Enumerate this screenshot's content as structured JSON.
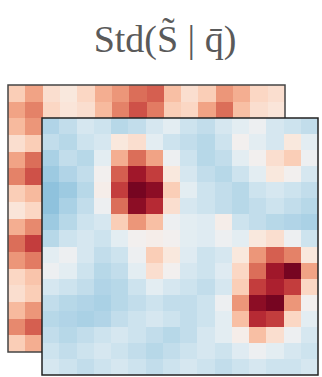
{
  "chart_data": [
    {
      "type": "heatmap",
      "title": "Std(S̃ | q̄)",
      "zlim": [
        0,
        1
      ],
      "cells": [
        [
          0.62,
          0.7,
          0.58,
          0.55,
          0.6,
          0.68,
          0.72,
          0.78,
          0.8,
          0.65,
          0.58,
          0.62,
          0.72,
          0.68,
          0.6,
          0.58
        ],
        [
          0.7,
          0.75,
          0.6,
          0.56,
          0.58,
          0.66,
          0.75,
          0.82,
          0.76,
          0.62,
          0.6,
          0.7,
          0.78,
          0.65,
          0.58,
          0.56
        ],
        [
          0.66,
          0.72,
          0.6,
          0.62,
          0.6,
          0.64,
          0.7,
          0.66,
          0.62,
          0.6,
          0.62,
          0.66,
          0.64,
          0.6,
          0.62,
          0.6
        ],
        [
          0.58,
          0.62,
          0.6,
          0.6,
          0.62,
          0.66,
          0.68,
          0.64,
          0.6,
          0.6,
          0.62,
          0.64,
          0.62,
          0.6,
          0.6,
          0.6
        ],
        [
          0.7,
          0.78,
          0.64,
          0.6,
          0.62,
          0.64,
          0.66,
          0.62,
          0.6,
          0.62,
          0.64,
          0.62,
          0.6,
          0.62,
          0.6,
          0.6
        ],
        [
          0.75,
          0.82,
          0.66,
          0.62,
          0.6,
          0.62,
          0.64,
          0.62,
          0.6,
          0.6,
          0.62,
          0.6,
          0.6,
          0.6,
          0.62,
          0.6
        ],
        [
          0.62,
          0.66,
          0.6,
          0.6,
          0.62,
          0.6,
          0.62,
          0.6,
          0.6,
          0.62,
          0.6,
          0.6,
          0.62,
          0.6,
          0.6,
          0.6
        ],
        [
          0.56,
          0.6,
          0.6,
          0.62,
          0.6,
          0.6,
          0.6,
          0.62,
          0.6,
          0.6,
          0.6,
          0.62,
          0.6,
          0.6,
          0.6,
          0.62
        ],
        [
          0.68,
          0.74,
          0.62,
          0.6,
          0.6,
          0.62,
          0.6,
          0.6,
          0.62,
          0.6,
          0.6,
          0.6,
          0.6,
          0.62,
          0.6,
          0.6
        ],
        [
          0.78,
          0.85,
          0.64,
          0.6,
          0.62,
          0.6,
          0.6,
          0.6,
          0.6,
          0.62,
          0.6,
          0.6,
          0.6,
          0.6,
          0.62,
          0.6
        ],
        [
          0.72,
          0.76,
          0.62,
          0.6,
          0.6,
          0.6,
          0.62,
          0.6,
          0.6,
          0.6,
          0.62,
          0.6,
          0.6,
          0.6,
          0.6,
          0.6
        ],
        [
          0.6,
          0.64,
          0.6,
          0.62,
          0.6,
          0.6,
          0.6,
          0.6,
          0.62,
          0.6,
          0.6,
          0.6,
          0.62,
          0.6,
          0.6,
          0.6
        ],
        [
          0.58,
          0.62,
          0.6,
          0.6,
          0.6,
          0.62,
          0.6,
          0.6,
          0.6,
          0.6,
          0.6,
          0.62,
          0.6,
          0.6,
          0.6,
          0.62
        ],
        [
          0.66,
          0.72,
          0.62,
          0.6,
          0.6,
          0.6,
          0.6,
          0.62,
          0.6,
          0.6,
          0.6,
          0.6,
          0.6,
          0.62,
          0.6,
          0.6
        ],
        [
          0.74,
          0.8,
          0.64,
          0.6,
          0.62,
          0.6,
          0.6,
          0.6,
          0.6,
          0.62,
          0.6,
          0.6,
          0.6,
          0.6,
          0.6,
          0.6
        ],
        [
          0.62,
          0.68,
          0.6,
          0.6,
          0.6,
          0.6,
          0.62,
          0.6,
          0.6,
          0.6,
          0.6,
          0.62,
          0.6,
          0.6,
          0.6,
          0.6
        ]
      ]
    },
    {
      "type": "heatmap",
      "zlim": [
        0,
        1
      ],
      "cells": [
        [
          0.35,
          0.38,
          0.42,
          0.4,
          0.36,
          0.38,
          0.42,
          0.45,
          0.4,
          0.38,
          0.42,
          0.45,
          0.48,
          0.42,
          0.4,
          0.38
        ],
        [
          0.38,
          0.36,
          0.4,
          0.42,
          0.55,
          0.58,
          0.45,
          0.4,
          0.38,
          0.36,
          0.4,
          0.5,
          0.45,
          0.42,
          0.55,
          0.45
        ],
        [
          0.34,
          0.38,
          0.36,
          0.45,
          0.68,
          0.78,
          0.7,
          0.48,
          0.4,
          0.36,
          0.38,
          0.45,
          0.5,
          0.58,
          0.62,
          0.48
        ],
        [
          0.32,
          0.35,
          0.38,
          0.5,
          0.8,
          0.92,
          0.85,
          0.55,
          0.42,
          0.38,
          0.36,
          0.4,
          0.45,
          0.55,
          0.5,
          0.42
        ],
        [
          0.3,
          0.32,
          0.36,
          0.52,
          0.85,
          0.98,
          0.95,
          0.62,
          0.45,
          0.4,
          0.38,
          0.36,
          0.4,
          0.42,
          0.4,
          0.38
        ],
        [
          0.3,
          0.34,
          0.38,
          0.48,
          0.78,
          0.95,
          0.88,
          0.58,
          0.42,
          0.4,
          0.38,
          0.36,
          0.38,
          0.4,
          0.38,
          0.36
        ],
        [
          0.32,
          0.36,
          0.4,
          0.42,
          0.62,
          0.72,
          0.65,
          0.48,
          0.45,
          0.44,
          0.52,
          0.4,
          0.38,
          0.36,
          0.35,
          0.34
        ],
        [
          0.36,
          0.4,
          0.42,
          0.4,
          0.45,
          0.5,
          0.52,
          0.5,
          0.45,
          0.44,
          0.48,
          0.45,
          0.55,
          0.58,
          0.48,
          0.4
        ],
        [
          0.45,
          0.48,
          0.42,
          0.38,
          0.4,
          0.48,
          0.62,
          0.55,
          0.44,
          0.4,
          0.42,
          0.55,
          0.72,
          0.8,
          0.75,
          0.55
        ],
        [
          0.48,
          0.45,
          0.4,
          0.36,
          0.38,
          0.45,
          0.58,
          0.5,
          0.42,
          0.4,
          0.44,
          0.6,
          0.78,
          0.92,
          0.98,
          0.7
        ],
        [
          0.42,
          0.4,
          0.38,
          0.35,
          0.36,
          0.4,
          0.45,
          0.42,
          0.4,
          0.38,
          0.42,
          0.62,
          0.85,
          0.9,
          0.85,
          0.6
        ],
        [
          0.38,
          0.36,
          0.35,
          0.34,
          0.36,
          0.38,
          0.4,
          0.38,
          0.38,
          0.4,
          0.48,
          0.72,
          0.95,
          0.98,
          0.72,
          0.5
        ],
        [
          0.36,
          0.35,
          0.34,
          0.35,
          0.38,
          0.4,
          0.42,
          0.4,
          0.38,
          0.4,
          0.45,
          0.65,
          0.88,
          0.85,
          0.6,
          0.45
        ],
        [
          0.38,
          0.36,
          0.38,
          0.4,
          0.42,
          0.4,
          0.38,
          0.36,
          0.38,
          0.42,
          0.45,
          0.52,
          0.65,
          0.58,
          0.48,
          0.42
        ],
        [
          0.4,
          0.38,
          0.4,
          0.42,
          0.4,
          0.38,
          0.36,
          0.38,
          0.4,
          0.42,
          0.4,
          0.44,
          0.48,
          0.45,
          0.42,
          0.4
        ],
        [
          0.42,
          0.4,
          0.38,
          0.4,
          0.42,
          0.4,
          0.38,
          0.4,
          0.42,
          0.4,
          0.38,
          0.4,
          0.42,
          0.4,
          0.4,
          0.42
        ]
      ]
    }
  ]
}
